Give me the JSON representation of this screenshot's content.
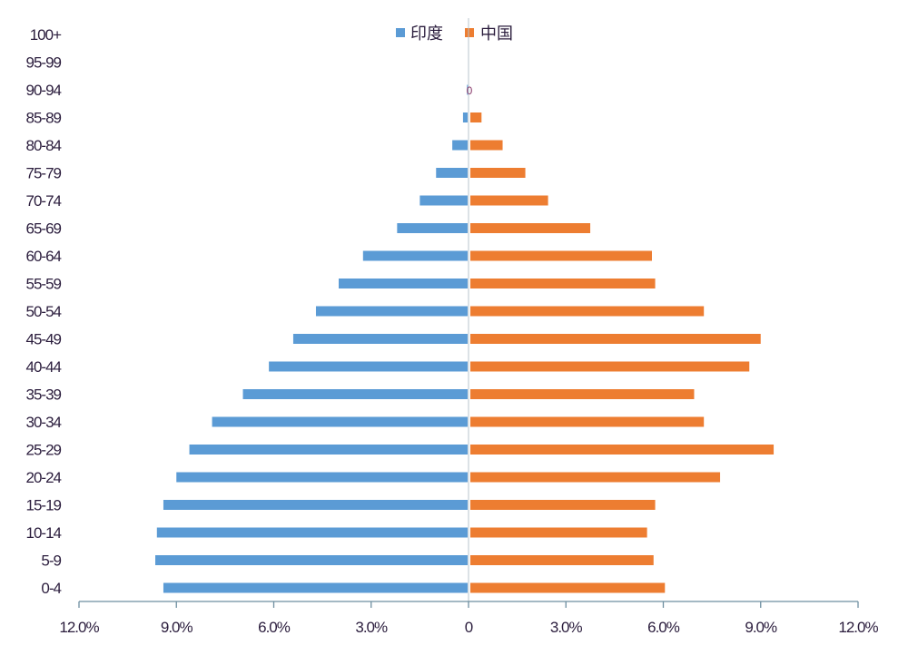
{
  "chart_data": {
    "type": "bar",
    "orientation": "horizontal-population-pyramid",
    "title": "",
    "xlabel": "",
    "ylabel": "",
    "xlim": [
      -12,
      12
    ],
    "x_ticks": [
      "12.0%",
      "9.0%",
      "6.0%",
      "3.0%",
      "0",
      "3.0%",
      "6.0%",
      "9.0%",
      "12.0%"
    ],
    "x_tick_values": [
      -12,
      -9,
      -6,
      -3,
      0,
      3,
      6,
      9,
      12
    ],
    "grid": false,
    "legend_position": "top-center",
    "categories": [
      "0-4",
      "5-9",
      "10-14",
      "15-19",
      "20-24",
      "25-29",
      "30-34",
      "35-39",
      "40-44",
      "45-49",
      "50-54",
      "55-59",
      "60-64",
      "65-69",
      "70-74",
      "75-79",
      "80-84",
      "85-89",
      "90-94",
      "95-99",
      "100+"
    ],
    "series": [
      {
        "name": "印度",
        "color": "#5b9bd5",
        "side": "left",
        "values": [
          9.4,
          9.65,
          9.6,
          9.4,
          9.0,
          8.6,
          7.9,
          6.95,
          6.15,
          5.4,
          4.7,
          4.0,
          3.25,
          2.2,
          1.5,
          1.0,
          0.5,
          0.17,
          0.02,
          0,
          0
        ]
      },
      {
        "name": "中国",
        "color": "#ed7d31",
        "side": "right",
        "values": [
          6.05,
          5.7,
          5.5,
          5.75,
          7.75,
          9.4,
          7.25,
          6.95,
          8.65,
          9.0,
          7.25,
          5.75,
          5.65,
          3.75,
          2.45,
          1.75,
          1.05,
          0.4,
          0.08,
          0,
          0
        ]
      }
    ],
    "annotations": [
      "0"
    ]
  }
}
